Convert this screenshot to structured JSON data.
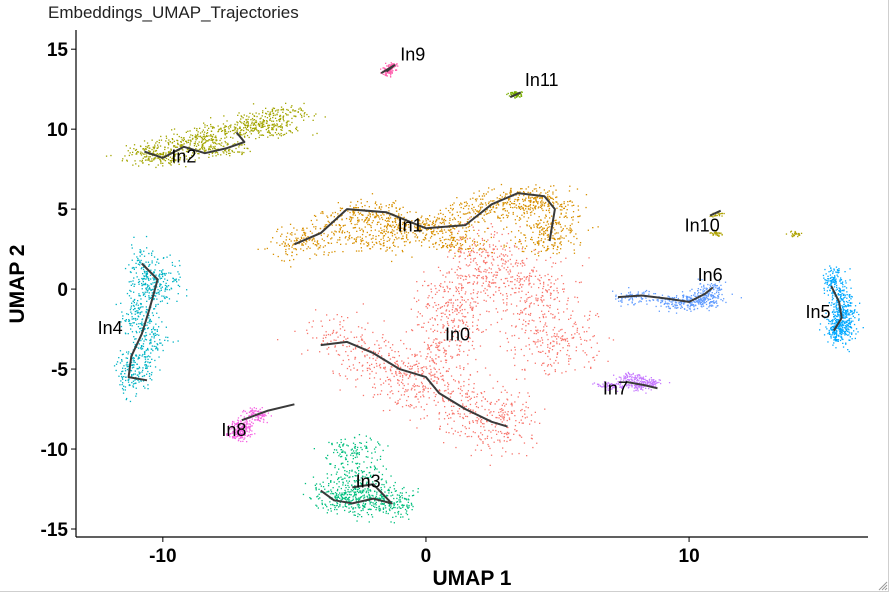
{
  "chart_data": {
    "type": "scatter",
    "title": "Embeddings_UMAP_Trajectories",
    "xlabel": "UMAP 1",
    "ylabel": "UMAP 2",
    "xlim": [
      -13.3,
      16.8
    ],
    "ylim": [
      -15.5,
      16.2
    ],
    "xticks": [
      {
        "value": -10,
        "label": "-10"
      },
      {
        "value": 0,
        "label": "0"
      },
      {
        "value": 10,
        "label": "10"
      }
    ],
    "yticks": [
      {
        "value": 15,
        "label": "15"
      },
      {
        "value": 10,
        "label": "10"
      },
      {
        "value": 5,
        "label": "5"
      },
      {
        "value": 0,
        "label": "0"
      },
      {
        "value": -5,
        "label": "-5"
      },
      {
        "value": -10,
        "label": "-10"
      },
      {
        "value": -15,
        "label": "-15"
      }
    ],
    "grid": false,
    "legend": "none",
    "clusters": [
      {
        "label": "In0",
        "color": "#F8766D",
        "label_x": 1.2,
        "label_y": -3.2,
        "spread_x": 1.5,
        "spread_y": 2.2,
        "points": 1800,
        "anchors": [
          [
            -3.5,
            -3.3
          ],
          [
            -2,
            -4.5
          ],
          [
            -0.5,
            -5
          ],
          [
            0.5,
            -6
          ],
          [
            1.5,
            -7.5
          ],
          [
            2.5,
            -8.3
          ],
          [
            3,
            -8.5
          ],
          [
            -1,
            -5.8
          ],
          [
            0.5,
            -4
          ],
          [
            1,
            -2
          ],
          [
            1.5,
            0
          ],
          [
            2.5,
            1.5
          ],
          [
            3.5,
            0.5
          ],
          [
            4.5,
            0
          ],
          [
            4,
            -2
          ],
          [
            4.5,
            -3.5
          ],
          [
            5.5,
            -3.2
          ],
          [
            2,
            2.2
          ],
          [
            0.8,
            -1
          ]
        ],
        "trajectory": [
          [
            -4,
            -3.5
          ],
          [
            -3,
            -3.3
          ],
          [
            -2,
            -4
          ],
          [
            -1,
            -5
          ],
          [
            0,
            -5.5
          ],
          [
            0.5,
            -6.5
          ],
          [
            1.5,
            -7.5
          ],
          [
            2.5,
            -8.3
          ],
          [
            3.1,
            -8.6
          ]
        ]
      },
      {
        "label": "In1",
        "color": "#D89000",
        "label_x": -0.6,
        "label_y": 3.6,
        "spread_x": 1.5,
        "spread_y": 0.9,
        "points": 1500,
        "anchors": [
          [
            -5,
            2.8
          ],
          [
            -4,
            3.5
          ],
          [
            -3,
            4.5
          ],
          [
            -2,
            4.8
          ],
          [
            -1,
            4
          ],
          [
            0,
            3.8
          ],
          [
            1,
            4.2
          ],
          [
            2,
            5
          ],
          [
            3,
            5.5
          ],
          [
            4,
            5.8
          ],
          [
            4.5,
            5.2
          ],
          [
            4.8,
            4
          ],
          [
            1,
            3
          ],
          [
            -2,
            3
          ],
          [
            4.5,
            3
          ]
        ],
        "trajectory": [
          [
            -5,
            2.8
          ],
          [
            -4,
            3.5
          ],
          [
            -3,
            5
          ],
          [
            -1.5,
            4.8
          ],
          [
            0,
            3.8
          ],
          [
            1.5,
            4
          ],
          [
            2.5,
            5.3
          ],
          [
            3.5,
            6
          ],
          [
            4.5,
            5.8
          ],
          [
            4.9,
            5
          ],
          [
            4.7,
            3
          ]
        ]
      },
      {
        "label": "In2",
        "color": "#A3A500",
        "label_x": -9.2,
        "label_y": 7.9,
        "spread_x": 1.3,
        "spread_y": 0.6,
        "points": 900,
        "anchors": [
          [
            -10.5,
            8.5
          ],
          [
            -9.5,
            9
          ],
          [
            -8.5,
            9.5
          ],
          [
            -7.5,
            10
          ],
          [
            -6.5,
            10.5
          ],
          [
            -5.5,
            11
          ],
          [
            -10,
            8.2
          ],
          [
            -8,
            8.8
          ],
          [
            -6,
            10
          ]
        ],
        "trajectory": [
          [
            -10.7,
            8.6
          ],
          [
            -10,
            8.2
          ],
          [
            -9.2,
            8.9
          ],
          [
            -8.4,
            8.5
          ],
          [
            -7.6,
            8.8
          ],
          [
            -6.9,
            9.2
          ],
          [
            -7.2,
            9.8
          ]
        ]
      },
      {
        "label": "In3",
        "color": "#00BF7D",
        "label_x": -2.2,
        "label_y": -12.4,
        "spread_x": 1.2,
        "spread_y": 1.0,
        "points": 700,
        "anchors": [
          [
            -3.5,
            -12.5
          ],
          [
            -2.5,
            -12.8
          ],
          [
            -1.5,
            -13
          ],
          [
            -2.5,
            -11.5
          ],
          [
            -2.8,
            -10
          ],
          [
            -1.3,
            -13.5
          ],
          [
            -3,
            -13.4
          ]
        ],
        "trajectory": [
          [
            -4,
            -12.6
          ],
          [
            -3.5,
            -13.2
          ],
          [
            -2.8,
            -13.4
          ],
          [
            -2,
            -13.1
          ],
          [
            -1.3,
            -13.4
          ],
          [
            -2,
            -12.2
          ],
          [
            -2.8,
            -12.4
          ]
        ]
      },
      {
        "label": "In4",
        "color": "#00B4C5",
        "label_x": -12.0,
        "label_y": -2.8,
        "spread_x": 0.7,
        "spread_y": 1.6,
        "points": 700,
        "anchors": [
          [
            -10.8,
            1.5
          ],
          [
            -10.5,
            0
          ],
          [
            -11,
            -1.5
          ],
          [
            -10.5,
            -3
          ],
          [
            -11,
            -4.5
          ],
          [
            -11.2,
            -5.5
          ],
          [
            -10,
            0.5
          ]
        ],
        "trajectory": [
          [
            -10.8,
            1.6
          ],
          [
            -10.2,
            0.6
          ],
          [
            -10.5,
            -1.2
          ],
          [
            -10.8,
            -2.8
          ],
          [
            -11.2,
            -4.2
          ],
          [
            -11.3,
            -5.5
          ],
          [
            -10.6,
            -5.7
          ]
        ]
      },
      {
        "label": "In5",
        "color": "#00A9FF",
        "label_x": 14.9,
        "label_y": -1.8,
        "spread_x": 0.5,
        "spread_y": 1.2,
        "points": 600,
        "anchors": [
          [
            15.8,
            -1
          ],
          [
            15.6,
            -2.5
          ],
          [
            15.5,
            0.5
          ],
          [
            15.9,
            -2
          ]
        ],
        "trajectory": [
          [
            15.4,
            0.2
          ],
          [
            15.7,
            -0.8
          ],
          [
            15.8,
            -1.8
          ],
          [
            15.5,
            -2.6
          ]
        ]
      },
      {
        "label": "In6",
        "color": "#619CFF",
        "label_x": 10.8,
        "label_y": 0.5,
        "spread_x": 0.9,
        "spread_y": 0.5,
        "points": 450,
        "anchors": [
          [
            8,
            -0.5
          ],
          [
            9.5,
            -0.8
          ],
          [
            10.3,
            -0.8
          ],
          [
            10.8,
            0
          ],
          [
            10.5,
            -0.5
          ]
        ],
        "trajectory": [
          [
            7.3,
            -0.5
          ],
          [
            8.2,
            -0.4
          ],
          [
            9.2,
            -0.6
          ],
          [
            10,
            -0.8
          ],
          [
            10.6,
            -0.3
          ],
          [
            10.9,
            0.1
          ]
        ]
      },
      {
        "label": "In7",
        "color": "#C77CFF",
        "label_x": 7.2,
        "label_y": -6.6,
        "spread_x": 0.6,
        "spread_y": 0.3,
        "points": 300,
        "anchors": [
          [
            7,
            -6
          ],
          [
            8,
            -6
          ],
          [
            8.5,
            -5.8
          ],
          [
            7.8,
            -5.5
          ]
        ],
        "trajectory": [
          [
            7.6,
            -5.8
          ],
          [
            8.3,
            -6
          ],
          [
            8.8,
            -6.2
          ]
        ]
      },
      {
        "label": "In8",
        "color": "#F564E3",
        "label_x": -7.3,
        "label_y": -9.2,
        "spread_x": 0.5,
        "spread_y": 0.5,
        "points": 300,
        "anchors": [
          [
            -7,
            -8.5
          ],
          [
            -6.5,
            -7.8
          ],
          [
            -7.2,
            -9
          ]
        ],
        "trajectory": [
          [
            -7,
            -8.2
          ],
          [
            -6,
            -7.6
          ],
          [
            -5,
            -7.2
          ]
        ]
      },
      {
        "label": "In9",
        "color": "#FF64B0",
        "label_x": -0.5,
        "label_y": 14.3,
        "spread_x": 0.25,
        "spread_y": 0.3,
        "points": 120,
        "anchors": [
          [
            -1.5,
            13.7
          ],
          [
            -1.3,
            14
          ]
        ],
        "trajectory": [
          [
            -1.7,
            13.5
          ],
          [
            -1.2,
            14
          ],
          [
            -1.5,
            13.6
          ]
        ]
      },
      {
        "label": "In10",
        "color": "#AEA200",
        "label_x": 10.5,
        "label_y": 3.6,
        "spread_x": 0.25,
        "spread_y": 0.2,
        "points": 80,
        "anchors": [
          [
            11,
            4.7
          ],
          [
            11,
            3.5
          ],
          [
            14,
            3.5
          ]
        ],
        "trajectory": [
          [
            10.8,
            4.6
          ],
          [
            11.2,
            4.9
          ]
        ]
      },
      {
        "label": "In11",
        "color": "#7AAE00",
        "label_x": 4.4,
        "label_y": 12.7,
        "spread_x": 0.25,
        "spread_y": 0.2,
        "points": 80,
        "anchors": [
          [
            3.4,
            12.2
          ]
        ],
        "trajectory": [
          [
            3.2,
            12
          ],
          [
            3.6,
            12.3
          ]
        ]
      }
    ]
  }
}
